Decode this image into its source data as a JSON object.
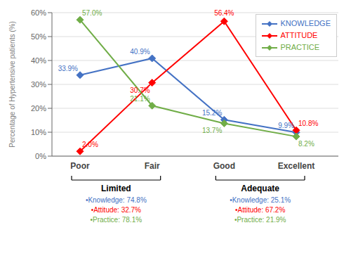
{
  "chart_data": {
    "type": "line",
    "categories": [
      "Poor",
      "Fair",
      "Good",
      "Excellent"
    ],
    "series": [
      {
        "name": "KNOWLEDGE",
        "color": "#4472C4",
        "values": [
          33.9,
          40.9,
          15.2,
          9.9
        ],
        "value_labels": [
          "33.9%",
          "40.9%",
          "15.2%",
          "9.9%"
        ]
      },
      {
        "name": "ATTITUDE",
        "color": "#FF0000",
        "values": [
          2.0,
          30.7,
          56.4,
          10.8
        ],
        "value_labels": [
          "2.0%",
          "30.7%",
          "56.4%",
          "10.8%"
        ]
      },
      {
        "name": "PRACTICE",
        "color": "#70AD47",
        "values": [
          57.0,
          21.1,
          13.7,
          8.2
        ],
        "value_labels": [
          "57.0%",
          "21.1%",
          "13.7%",
          "8.2%"
        ]
      }
    ],
    "ylabel": "Percentage of Hypertensive patients (%)",
    "ylim": [
      0,
      60
    ],
    "yticks": [
      {
        "value": 0,
        "label": "0%"
      },
      {
        "value": 10,
        "label": "10%"
      },
      {
        "value": 20,
        "label": "20%"
      },
      {
        "value": 30,
        "label": "30%"
      },
      {
        "value": 40,
        "label": "40%"
      },
      {
        "value": 50,
        "label": "50%"
      },
      {
        "value": 60,
        "label": "60%"
      }
    ],
    "grid": true,
    "legend": "upper right",
    "marker": "diamond",
    "data_labels": true,
    "annotations": [
      {
        "text": "Limited",
        "categories": [
          "Poor",
          "Fair"
        ],
        "lines": [
          "•Knowledge: 74.8%",
          "•Attitude: 32.7%",
          "•Practice: 78.1%"
        ]
      },
      {
        "text": "Adequate",
        "categories": [
          "Good",
          "Excellent"
        ],
        "lines": [
          "•Knowledge: 25.1%",
          "•Attitude: 67.2%",
          "•Practice: 21.9%"
        ]
      }
    ]
  }
}
